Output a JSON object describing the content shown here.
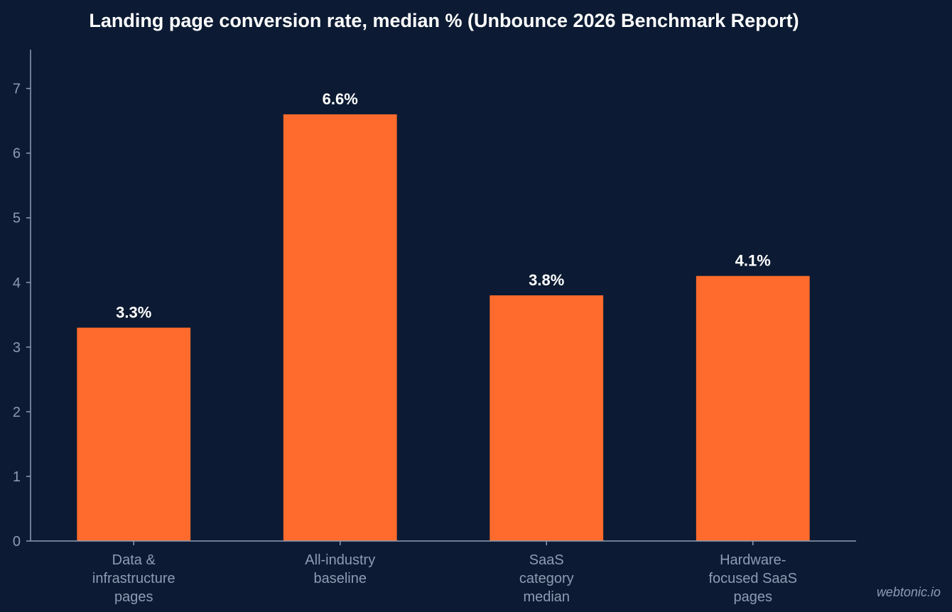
{
  "chart_data": {
    "type": "bar",
    "title": "Landing page conversion rate, median % (Unbounce 2026 Benchmark Report)",
    "xlabel": "",
    "ylabel": "",
    "categories": [
      [
        "Data &",
        "infrastructure",
        "pages"
      ],
      [
        "All-industry",
        "baseline"
      ],
      [
        "SaaS",
        "category",
        "median"
      ],
      [
        "Hardware-",
        "focused SaaS",
        "pages"
      ]
    ],
    "values": [
      3.3,
      6.6,
      3.8,
      4.1
    ],
    "data_labels": [
      "3.3%",
      "6.6%",
      "3.8%",
      "4.1%"
    ],
    "ylim": [
      0,
      7.6
    ],
    "yticks": [
      0,
      1,
      2,
      3,
      4,
      5,
      6,
      7
    ],
    "grid": false,
    "bar_color": "#ff6b2c",
    "background_color": "#0c1b33"
  },
  "watermark": "webtonic.io"
}
